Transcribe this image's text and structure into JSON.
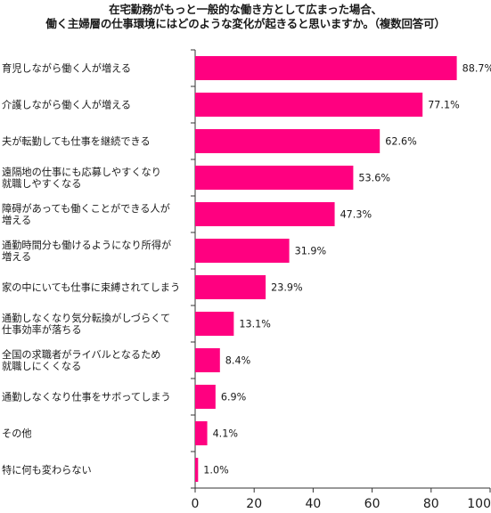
{
  "chart_data": {
    "type": "bar",
    "orientation": "horizontal",
    "title_lines": [
      "在宅勤務がもっと一般的な働き方として広まった場合、",
      "働く主婦層の仕事環境にはどのような変化が起きると思いますか。（複数回答可）"
    ],
    "categories": [
      [
        "育児しながら働く人が増える"
      ],
      [
        "介護しながら働く人が増える"
      ],
      [
        "夫が転勤しても仕事を継続できる"
      ],
      [
        "遠隔地の仕事にも応募しやすくなり",
        "就職しやすくなる"
      ],
      [
        "障碍があっても働くことができる人が",
        "増える"
      ],
      [
        "通勤時間分も働けるようになり所得が",
        "増える"
      ],
      [
        "家の中にいても仕事に束縛されてしまう"
      ],
      [
        "通勤しなくなり気分転換がしづらくて",
        "仕事効率が落ちる"
      ],
      [
        "全国の求職者がライバルとなるため",
        "就職しにくくなる"
      ],
      [
        "通勤しなくなり仕事をサボってしまう"
      ],
      [
        "その他"
      ],
      [
        "特に何も変わらない"
      ]
    ],
    "values": [
      88.7,
      77.1,
      62.6,
      53.6,
      47.3,
      31.9,
      23.9,
      13.1,
      8.4,
      6.9,
      4.1,
      1.0
    ],
    "value_labels": [
      "88.7%",
      "77.1%",
      "62.6%",
      "53.6%",
      "47.3%",
      "31.9%",
      "23.9%",
      "13.1%",
      "8.4%",
      "6.9%",
      "4.1%",
      "1.0%"
    ],
    "xlim": [
      0,
      100
    ],
    "xticks": [
      "0",
      "20",
      "40",
      "60",
      "80",
      "100"
    ],
    "grid": false,
    "bar_color": "#ff0080",
    "axis_color": "#333333"
  }
}
